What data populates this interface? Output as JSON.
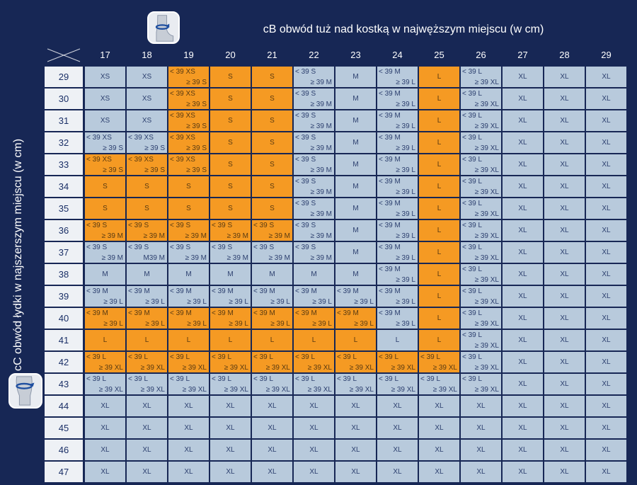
{
  "top_label": "cB obwód tuż nad kostką w najwęższym miejscu (w cm)",
  "side_label": "cC obwód łydki w najszerszym miejscu (w cm)",
  "icons": {
    "top": "ankle-measure-icon",
    "side": "calf-measure-icon"
  },
  "colors": {
    "background": "#172755",
    "cell": "#b8cadc",
    "highlight": "#f59a23",
    "row_header": "#eef1f5"
  },
  "columns": [
    "17",
    "18",
    "19",
    "20",
    "21",
    "22",
    "23",
    "24",
    "25",
    "26",
    "27",
    "28",
    "29"
  ],
  "rows": [
    {
      "label": "29",
      "cells": [
        [
          "XS"
        ],
        [
          "XS"
        ],
        [
          "< 39 XS",
          "≥ 39 S"
        ],
        [
          "S"
        ],
        [
          "S"
        ],
        [
          "< 39 S",
          "≥ 39 M"
        ],
        [
          "M"
        ],
        [
          "< 39 M",
          "≥ 39 L"
        ],
        [
          "L"
        ],
        [
          "< 39 L",
          "≥ 39 XL"
        ],
        [
          "XL"
        ],
        [
          "XL"
        ],
        [
          "XL"
        ]
      ]
    },
    {
      "label": "30",
      "cells": [
        [
          "XS"
        ],
        [
          "XS"
        ],
        [
          "< 39 XS",
          "≥ 39 S"
        ],
        [
          "S"
        ],
        [
          "S"
        ],
        [
          "< 39 S",
          "≥ 39 M"
        ],
        [
          "M"
        ],
        [
          "< 39 M",
          "≥ 39 L"
        ],
        [
          "L"
        ],
        [
          "< 39 L",
          "≥ 39 XL"
        ],
        [
          "XL"
        ],
        [
          "XL"
        ],
        [
          "XL"
        ]
      ]
    },
    {
      "label": "31",
      "cells": [
        [
          "XS"
        ],
        [
          "XS"
        ],
        [
          "< 39 XS",
          "≥ 39 S"
        ],
        [
          "S"
        ],
        [
          "S"
        ],
        [
          "< 39 S",
          "≥ 39 M"
        ],
        [
          "M"
        ],
        [
          "< 39 M",
          "≥ 39 L"
        ],
        [
          "L"
        ],
        [
          "< 39 L",
          "≥ 39 XL"
        ],
        [
          "XL"
        ],
        [
          "XL"
        ],
        [
          "XL"
        ]
      ]
    },
    {
      "label": "32",
      "cells": [
        [
          "< 39 XS",
          "≥ 39 S"
        ],
        [
          "< 39 XS",
          "≥ 39 S"
        ],
        [
          "< 39 XS",
          "≥ 39 S"
        ],
        [
          "S"
        ],
        [
          "S"
        ],
        [
          "< 39 S",
          "≥ 39 M"
        ],
        [
          "M"
        ],
        [
          "< 39 M",
          "≥ 39 L"
        ],
        [
          "L"
        ],
        [
          "< 39 L",
          "≥ 39 XL"
        ],
        [
          "XL"
        ],
        [
          "XL"
        ],
        [
          "XL"
        ]
      ]
    },
    {
      "label": "33",
      "cells": [
        [
          "< 39 XS",
          "≥ 39 S"
        ],
        [
          "< 39 XS",
          "≥ 39 S"
        ],
        [
          "< 39 XS",
          "≥ 39 S"
        ],
        [
          "S"
        ],
        [
          "S"
        ],
        [
          "< 39 S",
          "≥ 39 M"
        ],
        [
          "M"
        ],
        [
          "< 39 M",
          "≥ 39 L"
        ],
        [
          "L"
        ],
        [
          "< 39 L",
          "≥ 39 XL"
        ],
        [
          "XL"
        ],
        [
          "XL"
        ],
        [
          "XL"
        ]
      ]
    },
    {
      "label": "34",
      "cells": [
        [
          "S"
        ],
        [
          "S"
        ],
        [
          "S"
        ],
        [
          "S"
        ],
        [
          "S"
        ],
        [
          "< 39 S",
          "≥ 39 M"
        ],
        [
          "M"
        ],
        [
          "< 39 M",
          "≥ 39 L"
        ],
        [
          "L"
        ],
        [
          "< 39 L",
          "≥ 39 XL"
        ],
        [
          "XL"
        ],
        [
          "XL"
        ],
        [
          "XL"
        ]
      ]
    },
    {
      "label": "35",
      "cells": [
        [
          "S"
        ],
        [
          "S"
        ],
        [
          "S"
        ],
        [
          "S"
        ],
        [
          "S"
        ],
        [
          "< 39 S",
          "≥ 39 M"
        ],
        [
          "M"
        ],
        [
          "< 39 M",
          "≥ 39 L"
        ],
        [
          "L"
        ],
        [
          "< 39 L",
          "≥ 39 XL"
        ],
        [
          "XL"
        ],
        [
          "XL"
        ],
        [
          "XL"
        ]
      ]
    },
    {
      "label": "36",
      "cells": [
        [
          "< 39 S",
          "≥ 39 M"
        ],
        [
          "< 39 S",
          "≥ 39 M"
        ],
        [
          "< 39 S",
          "≥ 39 M"
        ],
        [
          "< 39 S",
          "≥ 39 M"
        ],
        [
          "< 39 S",
          "≥ 39 M"
        ],
        [
          "< 39 S",
          "≥ 39 M"
        ],
        [
          "M"
        ],
        [
          "< 39 M",
          "≥ 39 L"
        ],
        [
          "L"
        ],
        [
          "< 39 L",
          "≥ 39 XL"
        ],
        [
          "XL"
        ],
        [
          "XL"
        ],
        [
          "XL"
        ]
      ]
    },
    {
      "label": "37",
      "cells": [
        [
          "< 39 S",
          "≥ 39 M"
        ],
        [
          "< 39 S",
          "M39 M"
        ],
        [
          "< 39 S",
          "≥ 39 M"
        ],
        [
          "< 39 S",
          "≥ 39 M"
        ],
        [
          "< 39 S",
          "≥ 39 M"
        ],
        [
          "< 39 S",
          "≥ 39 M"
        ],
        [
          "M"
        ],
        [
          "< 39 M",
          "≥ 39 L"
        ],
        [
          "L"
        ],
        [
          "< 39 L",
          "≥ 39 XL"
        ],
        [
          "XL"
        ],
        [
          "XL"
        ],
        [
          "XL"
        ]
      ]
    },
    {
      "label": "38",
      "cells": [
        [
          "M"
        ],
        [
          "M"
        ],
        [
          "M"
        ],
        [
          "M"
        ],
        [
          "M"
        ],
        [
          "M"
        ],
        [
          "M"
        ],
        [
          "< 39 M",
          "≥ 39 L"
        ],
        [
          "L"
        ],
        [
          "< 39 L",
          "≥ 39 XL"
        ],
        [
          "XL"
        ],
        [
          "XL"
        ],
        [
          "XL"
        ]
      ]
    },
    {
      "label": "39",
      "cells": [
        [
          "< 39 M",
          "≥ 39 L"
        ],
        [
          "< 39 M",
          "≥ 39 L"
        ],
        [
          "< 39 M",
          "≥ 39 L"
        ],
        [
          "< 39 M",
          "≥ 39 L"
        ],
        [
          "< 39 M",
          "≥ 39 L"
        ],
        [
          "< 39 M",
          "≥ 39 L"
        ],
        [
          "< 39 M",
          "≥ 39 L"
        ],
        [
          "< 39 M",
          "≥ 39 L"
        ],
        [
          "L"
        ],
        [
          "< 39 L",
          "≥ 39 XL"
        ],
        [
          "XL"
        ],
        [
          "XL"
        ],
        [
          "XL"
        ]
      ]
    },
    {
      "label": "40",
      "cells": [
        [
          "< 39 M",
          "≥ 39 L"
        ],
        [
          "< 39 M",
          "≥ 39 L"
        ],
        [
          "< 39 M",
          "≥ 39 L"
        ],
        [
          "< 39 M",
          "≥ 39 L"
        ],
        [
          "< 39 M",
          "≥ 39 L"
        ],
        [
          "< 39 M",
          "≥ 39 L"
        ],
        [
          "< 39 M",
          "≥ 39 L"
        ],
        [
          "< 39 M",
          "≥ 39 L"
        ],
        [
          "L"
        ],
        [
          "< 39 L",
          "≥ 39 XL"
        ],
        [
          "XL"
        ],
        [
          "XL"
        ],
        [
          "XL"
        ]
      ]
    },
    {
      "label": "41",
      "cells": [
        [
          "L"
        ],
        [
          "L"
        ],
        [
          "L"
        ],
        [
          "L"
        ],
        [
          "L"
        ],
        [
          "L"
        ],
        [
          "L"
        ],
        [
          "L"
        ],
        [
          "L"
        ],
        [
          "< 39 L",
          "≥ 39 XL"
        ],
        [
          "XL"
        ],
        [
          "XL"
        ],
        [
          "XL"
        ]
      ]
    },
    {
      "label": "42",
      "cells": [
        [
          "< 39 L",
          "≥ 39 XL"
        ],
        [
          "< 39 L",
          "≥ 39 XL"
        ],
        [
          "< 39 L",
          "≥ 39 XL"
        ],
        [
          "< 39 L",
          "≥ 39 XL"
        ],
        [
          "< 39 L",
          "≥ 39 XL"
        ],
        [
          "< 39 L",
          "≥ 39 XL"
        ],
        [
          "< 39 L",
          "≥ 39 XL"
        ],
        [
          "< 39 L",
          "≥ 39 XL"
        ],
        [
          "< 39 L",
          "≥ 39 XL"
        ],
        [
          "< 39 L",
          "≥ 39 XL"
        ],
        [
          "XL"
        ],
        [
          "XL"
        ],
        [
          "XL"
        ]
      ]
    },
    {
      "label": "43",
      "cells": [
        [
          "< 39 L",
          "≥ 39 XL"
        ],
        [
          "< 39 L",
          "≥ 39 XL"
        ],
        [
          "< 39 L",
          "≥ 39 XL"
        ],
        [
          "< 39 L",
          "≥ 39 XL"
        ],
        [
          "< 39 L",
          "≥ 39 XL"
        ],
        [
          "< 39 L",
          "≥ 39 XL"
        ],
        [
          "< 39 L",
          "≥ 39 XL"
        ],
        [
          "< 39 L",
          "≥ 39 XL"
        ],
        [
          "< 39 L",
          "≥ 39 XL"
        ],
        [
          "< 39 L",
          "≥ 39 XL"
        ],
        [
          "XL"
        ],
        [
          "XL"
        ],
        [
          "XL"
        ]
      ]
    },
    {
      "label": "44",
      "cells": [
        [
          "XL"
        ],
        [
          "XL"
        ],
        [
          "XL"
        ],
        [
          "XL"
        ],
        [
          "XL"
        ],
        [
          "XL"
        ],
        [
          "XL"
        ],
        [
          "XL"
        ],
        [
          "XL"
        ],
        [
          "XL"
        ],
        [
          "XL"
        ],
        [
          "XL"
        ],
        [
          "XL"
        ]
      ]
    },
    {
      "label": "45",
      "cells": [
        [
          "XL"
        ],
        [
          "XL"
        ],
        [
          "XL"
        ],
        [
          "XL"
        ],
        [
          "XL"
        ],
        [
          "XL"
        ],
        [
          "XL"
        ],
        [
          "XL"
        ],
        [
          "XL"
        ],
        [
          "XL"
        ],
        [
          "XL"
        ],
        [
          "XL"
        ],
        [
          "XL"
        ]
      ]
    },
    {
      "label": "46",
      "cells": [
        [
          "XL"
        ],
        [
          "XL"
        ],
        [
          "XL"
        ],
        [
          "XL"
        ],
        [
          "XL"
        ],
        [
          "XL"
        ],
        [
          "XL"
        ],
        [
          "XL"
        ],
        [
          "XL"
        ],
        [
          "XL"
        ],
        [
          "XL"
        ],
        [
          "XL"
        ],
        [
          "XL"
        ]
      ]
    },
    {
      "label": "47",
      "cells": [
        [
          "XL"
        ],
        [
          "XL"
        ],
        [
          "XL"
        ],
        [
          "XL"
        ],
        [
          "XL"
        ],
        [
          "XL"
        ],
        [
          "XL"
        ],
        [
          "XL"
        ],
        [
          "XL"
        ],
        [
          "XL"
        ],
        [
          "XL"
        ],
        [
          "XL"
        ],
        [
          "XL"
        ]
      ]
    }
  ]
}
